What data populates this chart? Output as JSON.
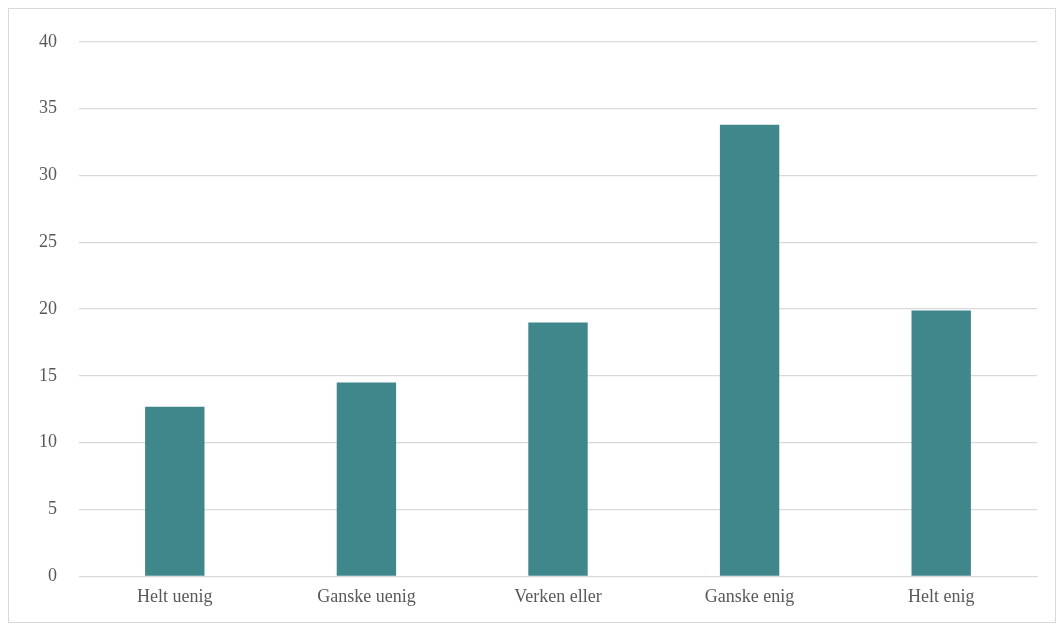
{
  "chart_data": {
    "type": "bar",
    "categories": [
      "Helt uenig",
      "Ganske uenig",
      "Verken eller",
      "Ganske enig",
      "Helt enig"
    ],
    "values": [
      12.7,
      14.5,
      19.0,
      33.8,
      19.9
    ],
    "color": "#40878c",
    "ylim": [
      0,
      40
    ],
    "yticks": [
      0,
      5,
      10,
      15,
      20,
      25,
      30,
      35,
      40
    ],
    "grid": "y",
    "legend": false
  }
}
